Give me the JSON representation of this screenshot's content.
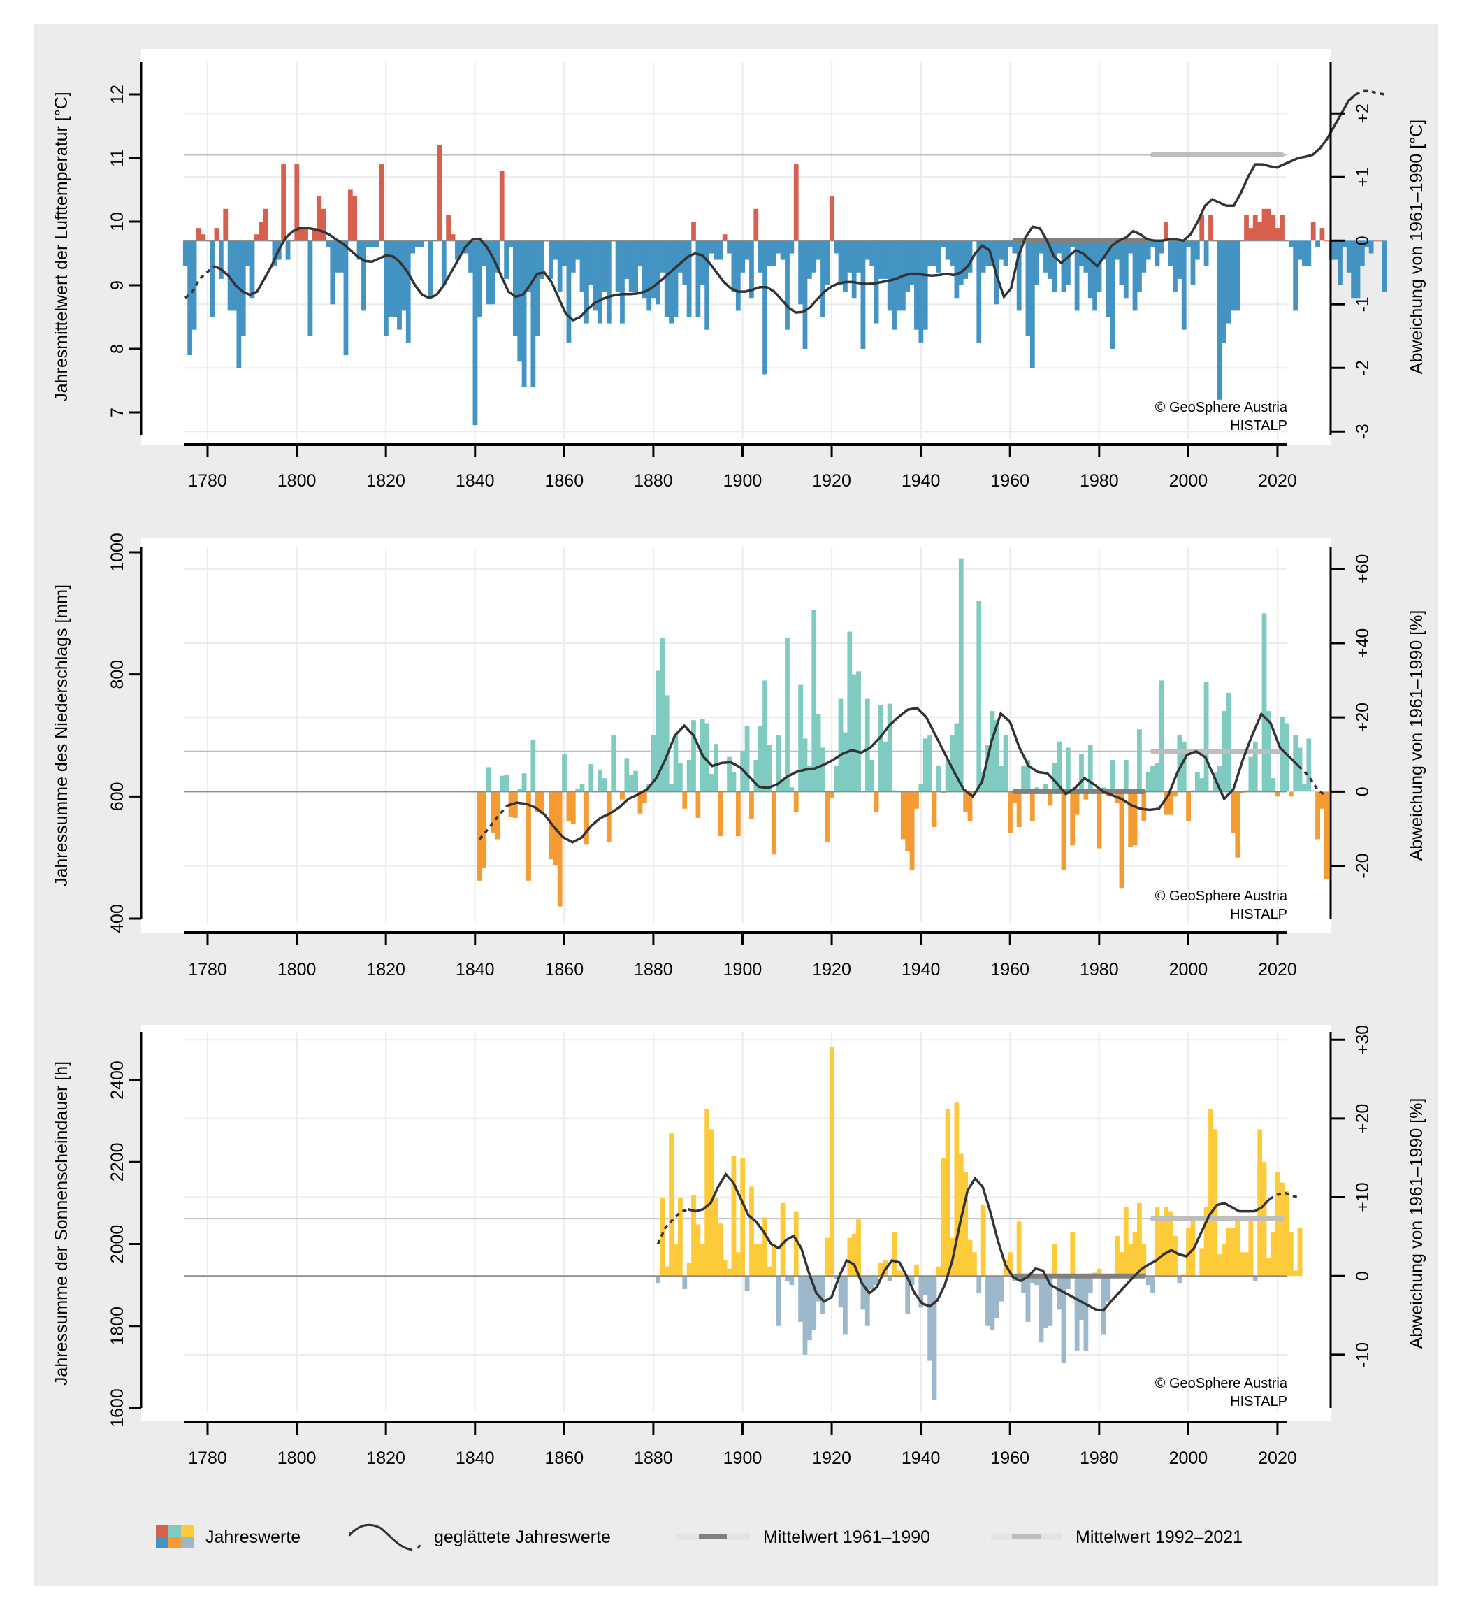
{
  "legend": {
    "annual_values": "Jahreswerte",
    "smoothed": "geglättete Jahreswerte",
    "mean_1961_1990": "Mittelwert 1961–1990",
    "mean_1992_2021": "Mittelwert 1992–2021"
  },
  "credit": {
    "line1": "© GeoSphere Austria",
    "line2": "HISTALP"
  },
  "colors": {
    "background": "#ececec",
    "temp_pos": "#d6604d",
    "temp_neg": "#4393c3",
    "precip_pos": "#80cbc1",
    "precip_neg": "#f49b33",
    "sun_pos": "#fdca3a",
    "sun_neg": "#9db7cb",
    "smooth": "#333333",
    "mean_1961_1990": "#808080",
    "mean_1992_2021": "#bdbdbd"
  },
  "chart_data": [
    {
      "type": "bar",
      "title": "",
      "xlabel": "",
      "ylabel": "Jahresmittelwert der Lufttemperatur [°C]",
      "y2label": "Abweichung von 1961–1990 [°C]",
      "xlim": [
        1775,
        2022
      ],
      "ylim": [
        6.7,
        12.5
      ],
      "yticks": [
        "7",
        "8",
        "9",
        "10",
        "11",
        "12"
      ],
      "y2ticks": [
        "-3",
        "-2",
        "-1",
        "0",
        "+1",
        "+2"
      ],
      "xticks": [
        "1780",
        "1800",
        "1820",
        "1840",
        "1860",
        "1880",
        "1900",
        "1920",
        "1940",
        "1960",
        "1980",
        "2000",
        "2020"
      ],
      "baseline": 9.7,
      "mean_1961_1990": 9.7,
      "mean_1992_2021": 11.05,
      "start_year": 1775,
      "values": [
        9.3,
        7.9,
        8.3,
        9.9,
        9.8,
        9.7,
        8.5,
        9.9,
        9.1,
        10.2,
        8.6,
        8.6,
        7.7,
        8.2,
        9.3,
        8.8,
        9.8,
        10.0,
        10.2,
        9.7,
        9.3,
        9.4,
        10.9,
        9.4,
        9.7,
        10.9,
        9.9,
        9.9,
        8.2,
        9.9,
        10.4,
        10.2,
        9.6,
        8.7,
        9.2,
        9.2,
        7.9,
        10.5,
        10.4,
        9.4,
        8.6,
        9.6,
        9.6,
        9.6,
        10.9,
        8.2,
        8.5,
        8.5,
        8.3,
        8.6,
        8.1,
        9.5,
        9.6,
        9.6,
        9.7,
        8.8,
        9.7,
        11.2,
        9.0,
        10.1,
        9.8,
        9.4,
        9.5,
        9.5,
        9.2,
        6.8,
        8.5,
        9.3,
        8.7,
        8.7,
        9.2,
        10.8,
        9.1,
        9.6,
        8.2,
        7.8,
        7.4,
        8.9,
        7.4,
        8.2,
        9.1,
        9.7,
        9.1,
        9.4,
        8.9,
        9.3,
        8.1,
        9.2,
        9.4,
        8.9,
        8.4,
        9.0,
        8.6,
        8.4,
        8.9,
        8.4,
        9.7,
        8.9,
        8.4,
        9.1,
        8.9,
        8.9,
        9.3,
        8.8,
        8.6,
        8.8,
        8.7,
        9.2,
        8.5,
        8.4,
        8.5,
        9.2,
        9.0,
        8.5,
        10.0,
        8.5,
        9.0,
        8.3,
        9.5,
        9.4,
        9.4,
        9.8,
        9.5,
        8.9,
        8.6,
        9.2,
        9.4,
        8.8,
        10.2,
        9.2,
        7.6,
        9.3,
        9.3,
        9.5,
        9.4,
        8.3,
        9.5,
        10.9,
        8.7,
        8.0,
        9.1,
        9.2,
        9.4,
        8.5,
        9.0,
        10.4,
        9.5,
        9.0,
        8.9,
        9.2,
        8.8,
        9.2,
        8.0,
        9.4,
        9.3,
        8.4,
        9.1,
        9.1,
        8.6,
        8.3,
        8.6,
        8.6,
        8.9,
        9.0,
        8.3,
        8.1,
        8.3,
        9.3,
        9.3,
        9.2,
        9.6,
        9.4,
        9.3,
        8.8,
        9.0,
        9.1,
        9.2,
        9.7,
        8.1,
        9.2,
        9.3,
        9.3,
        8.7,
        9.4,
        9.3,
        9.6,
        9.5,
        8.6,
        9.7,
        8.2,
        7.7,
        9.0,
        9.5,
        9.2,
        9.1,
        8.9,
        9.5,
        8.9,
        9.0,
        9.6,
        8.6,
        9.3,
        9.2,
        8.8,
        8.6,
        8.9,
        9.4,
        8.5,
        8.0,
        9.4,
        9.0,
        8.8,
        9.5,
        8.6,
        8.9,
        9.2,
        9.4,
        9.6,
        9.3,
        9.5,
        10.0,
        9.3,
        8.9,
        9.1,
        8.3,
        9.6,
        9.0,
        9.4,
        10.1,
        9.3,
        10.1,
        9.7,
        7.2,
        8.1,
        8.4,
        8.6,
        8.6,
        9.7,
        10.1,
        9.9,
        10.1,
        10.0,
        10.2,
        10.2,
        10.1,
        9.9,
        10.1,
        9.7,
        9.6,
        8.6,
        9.4,
        9.3,
        9.3,
        10.0,
        9.6,
        9.9,
        9.7,
        9.4,
        9.4,
        9.0,
        9.6,
        9.2,
        8.8,
        8.8,
        9.3,
        9.6,
        9.5,
        9.7,
        9.7,
        8.9
      ],
      "values_tail_note": "1961–2022",
      "smoothed": [
        8.8,
        8.9,
        9.1,
        9.2,
        9.3,
        9.25,
        9.15,
        9.0,
        8.9,
        8.85,
        8.9,
        9.1,
        9.3,
        9.55,
        9.75,
        9.85,
        9.9,
        9.9,
        9.88,
        9.85,
        9.8,
        9.72,
        9.65,
        9.55,
        9.45,
        9.38,
        9.37,
        9.42,
        9.47,
        9.45,
        9.35,
        9.2,
        9.0,
        8.85,
        8.8,
        8.85,
        9.0,
        9.2,
        9.4,
        9.6,
        9.72,
        9.73,
        9.6,
        9.4,
        9.15,
        8.9,
        8.82,
        8.85,
        9.0,
        9.18,
        9.2,
        9.05,
        8.8,
        8.55,
        8.45,
        8.5,
        8.62,
        8.72,
        8.78,
        8.82,
        8.85,
        8.86,
        8.86,
        8.87,
        8.9,
        8.96,
        9.05,
        9.15,
        9.25,
        9.35,
        9.45,
        9.5,
        9.47,
        9.35,
        9.2,
        9.05,
        8.95,
        8.9,
        8.9,
        8.93,
        8.97,
        8.97,
        8.9,
        8.78,
        8.65,
        8.57,
        8.58,
        8.65,
        8.78,
        8.9,
        8.98,
        9.03,
        9.05,
        9.05,
        9.03,
        9.02,
        9.03,
        9.05,
        9.07,
        9.1,
        9.15,
        9.18,
        9.18,
        9.16,
        9.15,
        9.16,
        9.18,
        9.16,
        9.2,
        9.3,
        9.5,
        9.62,
        9.55,
        9.15,
        8.82,
        8.95,
        9.45,
        9.75,
        9.92,
        9.9,
        9.7,
        9.45,
        9.35,
        9.45,
        9.55,
        9.5,
        9.4,
        9.3,
        9.45,
        9.62,
        9.7,
        9.75,
        9.85,
        9.8,
        9.72,
        9.7,
        9.7,
        9.72,
        9.72,
        9.7,
        9.8,
        10.0,
        10.25,
        10.35,
        10.3,
        10.25,
        10.25,
        10.45,
        10.7,
        10.9,
        10.9,
        10.87,
        10.85,
        10.9,
        10.95,
        11.0,
        11.02,
        11.05,
        11.15,
        11.3,
        11.5,
        11.7,
        11.9,
        12.0,
        12.05,
        12.05,
        12.02,
        12.0
      ],
      "smoothed_start_year": 1775
    },
    {
      "type": "bar",
      "title": "",
      "xlabel": "",
      "ylabel": "Jahressumme des Niederschlags [mm]",
      "y2label": "Abweichung von 1961–1990 [%]",
      "xlim": [
        1775,
        2022
      ],
      "ylim": [
        400,
        1000
      ],
      "yticks": [
        "400",
        "600",
        "800",
        "1000"
      ],
      "y2ticks": [
        "-20",
        "0",
        "+20",
        "+40",
        "+60"
      ],
      "xticks": [
        "1780",
        "1800",
        "1820",
        "1840",
        "1860",
        "1880",
        "1900",
        "1920",
        "1940",
        "1960",
        "1980",
        "2000",
        "2020"
      ],
      "baseline": 608,
      "mean_1961_1990": 608,
      "mean_1992_2021": 674,
      "start_year": 1841,
      "values": [
        462,
        483,
        648,
        540,
        530,
        634,
        636,
        567,
        565,
        612,
        638,
        462,
        693,
        575,
        572,
        608,
        497,
        488,
        420,
        669,
        559,
        555,
        613,
        620,
        521,
        653,
        608,
        643,
        630,
        526,
        700,
        610,
        595,
        663,
        636,
        642,
        572,
        590,
        620,
        700,
        806,
        860,
        766,
        620,
        700,
        655,
        580,
        660,
        725,
        565,
        727,
        720,
        637,
        686,
        535,
        608,
        665,
        640,
        535,
        675,
        715,
        563,
        660,
        715,
        790,
        685,
        505,
        700,
        628,
        860,
        615,
        575,
        783,
        695,
        650,
        905,
        735,
        680,
        525,
        598,
        650,
        760,
        705,
        870,
        800,
        805,
        608,
        760,
        660,
        575,
        750,
        690,
        752,
        610,
        608,
        530,
        510,
        480,
        580,
        620,
        695,
        700,
        550,
        650,
        605,
        660,
        700,
        720,
        990,
        575,
        560,
        605,
        920,
        640,
        685,
        740,
        725,
        650,
        700,
        540,
        590,
        550,
        650,
        660,
        560,
        615,
        605,
        620,
        585,
        655,
        690,
        480,
        680,
        520,
        570,
        670,
        595,
        685,
        610,
        515,
        615,
        600,
        660,
        590,
        450,
        660,
        518,
        520,
        710,
        560,
        640,
        650,
        655,
        790,
        570,
        570,
        600,
        700,
        690,
        560,
        610,
        640,
        630,
        788,
        610,
        640,
        650,
        740,
        770,
        540,
        500,
        605,
        610,
        665,
        690,
        610,
        900,
        740,
        630,
        600,
        730,
        720,
        600,
        700,
        680,
        620,
        695,
        610,
        530,
        580,
        465
      ],
      "smoothed": [
        530,
        548,
        568,
        585,
        590,
        588,
        582,
        570,
        550,
        533,
        525,
        533,
        552,
        565,
        572,
        582,
        596,
        603,
        612,
        630,
        662,
        700,
        716,
        700,
        666,
        650,
        655,
        656,
        648,
        632,
        616,
        614,
        620,
        632,
        640,
        644,
        646,
        652,
        660,
        670,
        676,
        672,
        680,
        696,
        716,
        730,
        742,
        745,
        730,
        700,
        670,
        640,
        612,
        600,
        624,
        690,
        736,
        722,
        680,
        650,
        640,
        638,
        622,
        604,
        614,
        630,
        620,
        608,
        602,
        596,
        586,
        580,
        578,
        580,
        602,
        640,
        668,
        674,
        664,
        630,
        596,
        612,
        660,
        700,
        735,
        720,
        680,
        665,
        650,
        635,
        612,
        600
      ],
      "smoothed_start_year": 1841
    },
    {
      "type": "bar",
      "title": "",
      "xlabel": "",
      "ylabel": "Jahressumme der Sonnenscheindauer [h]",
      "y2label": "Abweichung von 1961–1990 [%]",
      "xlim": [
        1775,
        2022
      ],
      "ylim": [
        1600,
        2500
      ],
      "yticks": [
        "1600",
        "1800",
        "2000",
        "2200",
        "2400"
      ],
      "y2ticks": [
        "-10",
        "0",
        "+10",
        "+20",
        "+30"
      ],
      "xticks": [
        "1780",
        "1800",
        "1820",
        "1840",
        "1860",
        "1880",
        "1900",
        "1920",
        "1940",
        "1960",
        "1980",
        "2000",
        "2020"
      ],
      "baseline": 1922,
      "mean_1961_1990": 1922,
      "mean_1992_2021": 2062,
      "start_year": 1881,
      "values": [
        1905,
        2112,
        1945,
        2270,
        2000,
        2112,
        1890,
        1955,
        2120,
        2048,
        2000,
        2330,
        2280,
        2112,
        2050,
        1960,
        1940,
        2215,
        1980,
        2210,
        1885,
        2140,
        2000,
        2000,
        2065,
        1945,
        2000,
        1800,
        2100,
        1910,
        1900,
        2080,
        1810,
        1730,
        1765,
        1790,
        1860,
        1830,
        2015,
        2480,
        1915,
        1845,
        1780,
        2015,
        2025,
        2060,
        1840,
        1800,
        1890,
        1900,
        1955,
        1960,
        1910,
        2030,
        1935,
        1930,
        1830,
        1900,
        1950,
        1845,
        1875,
        1715,
        1620,
        1945,
        2210,
        2330,
        2015,
        2345,
        2220,
        2175,
        2010,
        1980,
        1880,
        2095,
        1800,
        1790,
        1820,
        1860,
        1960,
        1980,
        1910,
        2055,
        1880,
        1810,
        1905,
        1900,
        1760,
        1795,
        1800,
        2000,
        1840,
        1710,
        1890,
        2030,
        1740,
        1815,
        1740,
        1880,
        1930,
        1940,
        1780,
        1860,
        1920,
        2020,
        1980,
        2090,
        2000,
        2030,
        2100,
        2000,
        1900,
        1880,
        2090,
        2060,
        2090,
        2080,
        2020,
        1905,
        1925,
        2040,
        2060,
        1920,
        1990,
        2090,
        2330,
        2280,
        1975,
        2000,
        2040,
        2040,
        2060,
        1980,
        1980,
        2060,
        1910,
        2280,
        2200,
        1965,
        2030,
        2175,
        2150,
        2130,
        2030,
        1935,
        2040
      ],
      "smoothed": [
        2000,
        2040,
        2060,
        2078,
        2085,
        2080,
        2085,
        2100,
        2140,
        2170,
        2150,
        2110,
        2070,
        2055,
        2030,
        2000,
        1990,
        2010,
        2020,
        1990,
        1930,
        1880,
        1860,
        1870,
        1920,
        1960,
        1950,
        1905,
        1880,
        1895,
        1935,
        1960,
        1955,
        1920,
        1880,
        1855,
        1848,
        1862,
        1900,
        1960,
        2050,
        2130,
        2160,
        2140,
        2080,
        2010,
        1950,
        1920,
        1910,
        1920,
        1940,
        1935,
        1900,
        1890,
        1880,
        1870,
        1860,
        1850,
        1840,
        1838,
        1860,
        1880,
        1900,
        1920,
        1938,
        1950,
        1960,
        1975,
        1985,
        1975,
        1970,
        1990,
        2030,
        2070,
        2095,
        2100,
        2090,
        2080,
        2080,
        2080,
        2090,
        2110,
        2120,
        2125,
        2118,
        2112
      ],
      "smoothed_start_year": 1881
    }
  ]
}
